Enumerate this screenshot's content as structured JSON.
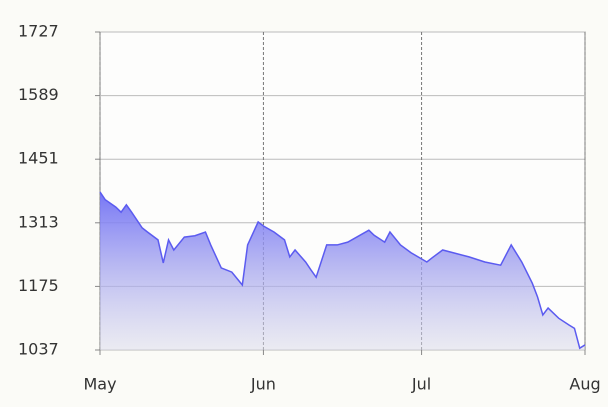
{
  "chart_data": {
    "type": "area",
    "x": [
      0,
      1,
      3,
      4,
      5,
      6,
      8,
      9,
      11,
      12,
      13,
      14,
      16,
      18,
      20,
      21,
      23,
      25,
      27,
      28,
      30,
      31,
      33,
      35,
      36,
      37,
      39,
      40,
      41,
      43,
      45,
      47,
      51,
      52,
      54,
      55,
      57,
      59,
      62,
      63,
      65,
      67,
      70,
      73,
      76,
      78,
      80,
      82,
      83,
      84,
      85,
      87,
      89,
      90,
      91,
      92
    ],
    "values": [
      1380,
      1363,
      1347,
      1336,
      1352,
      1336,
      1302,
      1293,
      1276,
      1226,
      1276,
      1254,
      1282,
      1285,
      1293,
      1265,
      1215,
      1206,
      1178,
      1265,
      1315,
      1306,
      1293,
      1276,
      1239,
      1254,
      1228,
      1211,
      1195,
      1265,
      1265,
      1271,
      1297,
      1286,
      1271,
      1293,
      1265,
      1248,
      1228,
      1237,
      1254,
      1248,
      1239,
      1228,
      1221,
      1265,
      1228,
      1182,
      1152,
      1113,
      1128,
      1106,
      1091,
      1084,
      1041,
      1048
    ],
    "color": "#5b5bf0",
    "xlim": [
      0,
      92
    ],
    "xticks": [
      {
        "value": 0,
        "label": "May"
      },
      {
        "value": 31,
        "label": "Jun"
      },
      {
        "value": 61,
        "label": "Jul"
      },
      {
        "value": 92,
        "label": "Aug"
      }
    ],
    "ylim": [
      1037,
      1727
    ],
    "yticks": [
      1037,
      1175,
      1313,
      1451,
      1589,
      1727
    ],
    "grid": true
  }
}
